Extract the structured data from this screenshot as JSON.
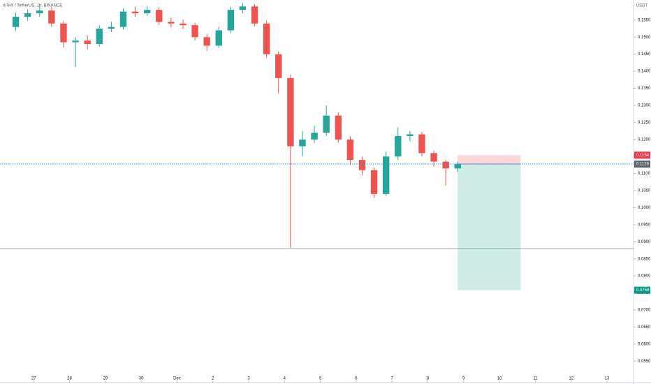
{
  "chart_data": {
    "type": "candlestick",
    "title": "IoTeX / TetherUS, 1h, BINANCE",
    "currency": "USDT",
    "up_color": "#26a69a",
    "down_color": "#ef5350",
    "x": [
      -0.5,
      -0.1667,
      0.1667,
      0.5,
      0.8333,
      1.1667,
      1.5,
      1.8333,
      2.1667,
      2.5,
      2.8333,
      3.1667,
      3.5,
      3.8333,
      4.1667,
      4.5,
      4.8333,
      5.1667,
      5.5,
      5.8333,
      6.1667,
      6.5,
      6.8333,
      7.1667,
      7.5,
      7.8333,
      8.1667,
      8.5,
      8.8333,
      9.1667,
      9.5,
      9.8333,
      10.1667,
      10.5,
      10.8333,
      11.1667,
      11.5,
      11.8333
    ],
    "open": [
      0.153,
      0.156,
      0.157,
      0.1578,
      0.154,
      0.1485,
      0.149,
      0.148,
      0.1525,
      0.153,
      0.1575,
      0.157,
      0.158,
      0.1545,
      0.154,
      0.1535,
      0.15,
      0.1475,
      0.152,
      0.158,
      0.159,
      0.154,
      0.145,
      0.138,
      0.118,
      0.12,
      0.122,
      0.127,
      0.12,
      0.114,
      0.111,
      0.104,
      0.115,
      0.121,
      0.1215,
      0.116,
      0.1135,
      0.1115
    ],
    "high": [
      0.1572,
      0.1582,
      0.159,
      0.1588,
      0.1548,
      0.15,
      0.1505,
      0.1535,
      0.1545,
      0.1585,
      0.159,
      0.1592,
      0.1588,
      0.1558,
      0.1552,
      0.1542,
      0.151,
      0.153,
      0.159,
      0.16,
      0.1596,
      0.1548,
      0.1458,
      0.139,
      0.1225,
      0.124,
      0.13,
      0.128,
      0.121,
      0.115,
      0.1118,
      0.1165,
      0.1235,
      0.1225,
      0.1222,
      0.1168,
      0.114,
      0.1135
    ],
    "low": [
      0.1518,
      0.1548,
      0.156,
      0.153,
      0.147,
      0.1412,
      0.1465,
      0.1472,
      0.1515,
      0.1522,
      0.156,
      0.1562,
      0.1535,
      0.1528,
      0.1525,
      0.149,
      0.146,
      0.1468,
      0.1512,
      0.157,
      0.1532,
      0.144,
      0.1335,
      0.0882,
      0.115,
      0.119,
      0.121,
      0.119,
      0.1125,
      0.1095,
      0.1028,
      0.1035,
      0.114,
      0.1195,
      0.115,
      0.112,
      0.1065,
      0.1105
    ],
    "close": [
      0.156,
      0.157,
      0.1578,
      0.154,
      0.1485,
      0.149,
      0.148,
      0.1525,
      0.153,
      0.1575,
      0.157,
      0.158,
      0.1545,
      0.154,
      0.1535,
      0.15,
      0.1475,
      0.152,
      0.158,
      0.159,
      0.154,
      0.145,
      0.138,
      0.118,
      0.12,
      0.122,
      0.127,
      0.12,
      0.114,
      0.111,
      0.104,
      0.115,
      0.121,
      0.1215,
      0.116,
      0.1135,
      0.1115,
      0.1128
    ],
    "xlim": [
      -0.94,
      16.74
    ],
    "ylim": [
      0.0487,
      0.1609
    ],
    "xticks": [
      {
        "value": 0,
        "label": "27"
      },
      {
        "value": 1,
        "label": "28"
      },
      {
        "value": 2,
        "label": "29"
      },
      {
        "value": 3,
        "label": "30"
      },
      {
        "value": 4,
        "label": "Dec"
      },
      {
        "value": 5,
        "label": "2"
      },
      {
        "value": 6,
        "label": "3"
      },
      {
        "value": 7,
        "label": "4"
      },
      {
        "value": 8,
        "label": "5"
      },
      {
        "value": 9,
        "label": "6"
      },
      {
        "value": 10,
        "label": "7"
      },
      {
        "value": 11,
        "label": "8"
      },
      {
        "value": 12,
        "label": "9"
      },
      {
        "value": 13,
        "label": "10"
      },
      {
        "value": 14,
        "label": "11"
      },
      {
        "value": 15,
        "label": "12"
      },
      {
        "value": 16,
        "label": "13"
      }
    ],
    "yticks": [
      {
        "value": 0.055,
        "label": "0.0550"
      },
      {
        "value": 0.06,
        "label": "0.0600"
      },
      {
        "value": 0.065,
        "label": "0.0650"
      },
      {
        "value": 0.07,
        "label": "0.0700"
      },
      {
        "value": 0.075,
        "label": "0.0750"
      },
      {
        "value": 0.08,
        "label": "0.0800"
      },
      {
        "value": 0.085,
        "label": "0.0850"
      },
      {
        "value": 0.09,
        "label": "0.0900"
      },
      {
        "value": 0.095,
        "label": "0.0950"
      },
      {
        "value": 0.1,
        "label": "0.1000"
      },
      {
        "value": 0.105,
        "label": "0.1050"
      },
      {
        "value": 0.11,
        "label": "0.1100"
      },
      {
        "value": 0.115,
        "label": "0.1150"
      },
      {
        "value": 0.12,
        "label": "0.1200"
      },
      {
        "value": 0.125,
        "label": "0.1250"
      },
      {
        "value": 0.13,
        "label": "0.1300"
      },
      {
        "value": 0.135,
        "label": "0.1350"
      },
      {
        "value": 0.14,
        "label": "0.1400"
      },
      {
        "value": 0.145,
        "label": "0.1450"
      },
      {
        "value": 0.15,
        "label": "0.1500"
      },
      {
        "value": 0.155,
        "label": "0.1550"
      }
    ],
    "horizontal_line": 0.088,
    "last_price": {
      "value": 0.1128,
      "label": "0.1128"
    },
    "position": {
      "x_start": 11.83,
      "x_end": 13.59,
      "entry": 0.1128,
      "stop": {
        "value": 0.1154,
        "label": "0.1154"
      },
      "target": {
        "value": 0.0758,
        "label": "0.0758"
      }
    }
  }
}
